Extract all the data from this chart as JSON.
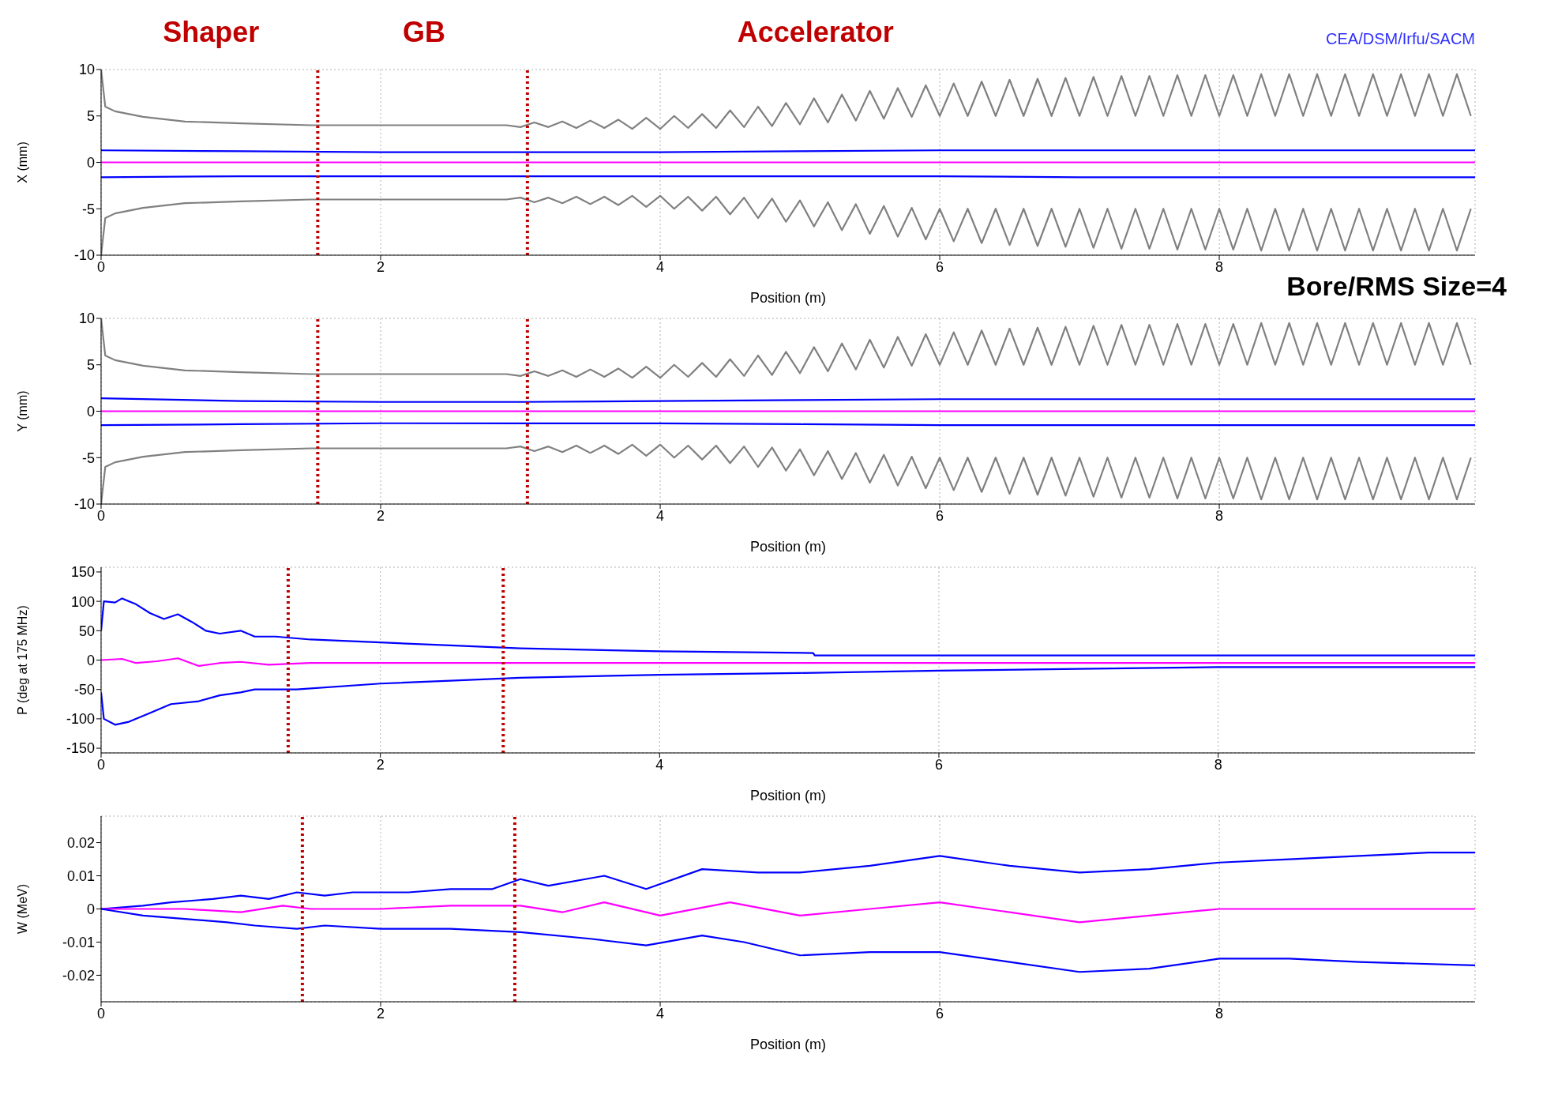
{
  "chart_data": [
    {
      "type": "line",
      "xlabel": "Position (m)",
      "ylabel": "X (mm)",
      "xlim": [
        0,
        9.83
      ],
      "xticks": [
        0,
        2,
        4,
        6,
        8
      ],
      "ylim": [
        -10,
        10
      ],
      "yticks": [
        -10,
        -5,
        0,
        5,
        10
      ],
      "grid": true,
      "annotations": [
        "Shaper",
        "GB",
        "Accelerator",
        "CEA/DSM/Irfu/SACM",
        "Bore/RMS Size=4"
      ],
      "ref_lines": [
        {
          "axis": "x",
          "value": 1.55,
          "color": "#c00000",
          "line_style": "dotted"
        },
        {
          "axis": "x",
          "value": 3.05,
          "color": "#c00000",
          "line_style": "dotted"
        }
      ],
      "series": [
        {
          "color": "#808080",
          "x": [
            0,
            0.03,
            0.1,
            0.3,
            0.6,
            1,
            1.5,
            2,
            2.5,
            2.9,
            3.0,
            3.1,
            3.2,
            3.3,
            3.4,
            3.5,
            3.6,
            3.7,
            3.8,
            3.9,
            4.0,
            4.1,
            4.2,
            4.3,
            4.4,
            4.5,
            4.6,
            4.7,
            4.8,
            4.9,
            5.0,
            5.1,
            5.2,
            5.3,
            5.4,
            5.5,
            5.6,
            5.7,
            5.8,
            5.9,
            6.0,
            6.1,
            6.2,
            6.3,
            6.4,
            6.5,
            6.6,
            6.7,
            6.8,
            6.9,
            7.0,
            7.1,
            7.2,
            7.3,
            7.4,
            7.5,
            7.6,
            7.7,
            7.8,
            7.9,
            8.0,
            8.1,
            8.2,
            8.3,
            8.4,
            8.5,
            8.6,
            8.7,
            8.8,
            8.9,
            9.0,
            9.1,
            9.2,
            9.3,
            9.4,
            9.5,
            9.6,
            9.7,
            9.8
          ],
          "values": [
            10,
            6,
            5.5,
            4.9,
            4.4,
            4.2,
            4.0,
            4.0,
            4.0,
            4.0,
            3.8,
            4.3,
            3.8,
            4.4,
            3.7,
            4.5,
            3.7,
            4.6,
            3.6,
            4.8,
            3.6,
            5.0,
            3.7,
            5.2,
            3.7,
            5.6,
            3.8,
            6.0,
            3.9,
            6.4,
            4.1,
            6.9,
            4.3,
            7.3,
            4.5,
            7.7,
            4.7,
            8.0,
            4.9,
            8.3,
            5.0,
            8.5,
            5.0,
            8.7,
            5.0,
            8.9,
            5.0,
            9.0,
            5.0,
            9.1,
            5.0,
            9.2,
            5.0,
            9.3,
            5.0,
            9.3,
            5.0,
            9.4,
            5.0,
            9.4,
            5.0,
            9.4,
            5.0,
            9.5,
            5.0,
            9.5,
            5.0,
            9.5,
            5.0,
            9.5,
            5.0,
            9.5,
            5.0,
            9.5,
            5.0,
            9.5,
            5.0,
            9.5,
            5.0
          ]
        },
        {
          "color": "#808080",
          "x": [
            0,
            0.03,
            0.1,
            0.3,
            0.6,
            1,
            1.5,
            2,
            2.5,
            2.9,
            3.0,
            3.1,
            3.2,
            3.3,
            3.4,
            3.5,
            3.6,
            3.7,
            3.8,
            3.9,
            4.0,
            4.1,
            4.2,
            4.3,
            4.4,
            4.5,
            4.6,
            4.7,
            4.8,
            4.9,
            5.0,
            5.1,
            5.2,
            5.3,
            5.4,
            5.5,
            5.6,
            5.7,
            5.8,
            5.9,
            6.0,
            6.1,
            6.2,
            6.3,
            6.4,
            6.5,
            6.6,
            6.7,
            6.8,
            6.9,
            7.0,
            7.1,
            7.2,
            7.3,
            7.4,
            7.5,
            7.6,
            7.7,
            7.8,
            7.9,
            8.0,
            8.1,
            8.2,
            8.3,
            8.4,
            8.5,
            8.6,
            8.7,
            8.8,
            8.9,
            9.0,
            9.1,
            9.2,
            9.3,
            9.4,
            9.5,
            9.6,
            9.7,
            9.8
          ],
          "values": [
            -10,
            -6,
            -5.5,
            -4.9,
            -4.4,
            -4.2,
            -4.0,
            -4.0,
            -4.0,
            -4.0,
            -3.8,
            -4.3,
            -3.8,
            -4.4,
            -3.7,
            -4.5,
            -3.7,
            -4.6,
            -3.6,
            -4.8,
            -3.6,
            -5.0,
            -3.7,
            -5.2,
            -3.7,
            -5.6,
            -3.8,
            -6.0,
            -3.9,
            -6.4,
            -4.1,
            -6.9,
            -4.3,
            -7.3,
            -4.5,
            -7.7,
            -4.7,
            -8.0,
            -4.9,
            -8.3,
            -5.0,
            -8.5,
            -5.0,
            -8.7,
            -5.0,
            -8.9,
            -5.0,
            -9.0,
            -5.0,
            -9.1,
            -5.0,
            -9.2,
            -5.0,
            -9.3,
            -5.0,
            -9.3,
            -5.0,
            -9.4,
            -5.0,
            -9.4,
            -5.0,
            -9.4,
            -5.0,
            -9.5,
            -5.0,
            -9.5,
            -5.0,
            -9.5,
            -5.0,
            -9.5,
            -5.0,
            -9.5,
            -5.0,
            -9.5,
            -5.0,
            -9.5,
            -5.0,
            -9.5,
            -5.0
          ]
        },
        {
          "color": "#0000ff",
          "x": [
            0,
            1,
            2,
            3,
            4,
            5,
            6,
            7,
            8,
            9.83
          ],
          "values": [
            1.3,
            1.2,
            1.1,
            1.1,
            1.1,
            1.2,
            1.3,
            1.3,
            1.3,
            1.3
          ]
        },
        {
          "color": "#0000ff",
          "x": [
            0,
            1,
            2,
            3,
            4,
            5,
            6,
            7,
            8,
            9.83
          ],
          "values": [
            -1.6,
            -1.5,
            -1.5,
            -1.5,
            -1.5,
            -1.5,
            -1.5,
            -1.6,
            -1.6,
            -1.6
          ]
        },
        {
          "color": "#ff00ff",
          "x": [
            0,
            9.83
          ],
          "values": [
            0,
            0
          ]
        }
      ]
    },
    {
      "type": "line",
      "xlabel": "Position (m)",
      "ylabel": "Y (mm)",
      "xlim": [
        0,
        9.83
      ],
      "xticks": [
        0,
        2,
        4,
        6,
        8
      ],
      "ylim": [
        -10,
        10
      ],
      "yticks": [
        -10,
        -5,
        0,
        5,
        10
      ],
      "grid": true,
      "ref_lines": [
        {
          "axis": "x",
          "value": 1.55,
          "color": "#c00000",
          "line_style": "dotted"
        },
        {
          "axis": "x",
          "value": 3.05,
          "color": "#c00000",
          "line_style": "dotted"
        }
      ],
      "series": [
        {
          "color": "#808080",
          "x": [
            0,
            0.03,
            0.1,
            0.3,
            0.6,
            1,
            1.5,
            2,
            2.5,
            2.9,
            3.0,
            3.1,
            3.2,
            3.3,
            3.4,
            3.5,
            3.6,
            3.7,
            3.8,
            3.9,
            4.0,
            4.1,
            4.2,
            4.3,
            4.4,
            4.5,
            4.6,
            4.7,
            4.8,
            4.9,
            5.0,
            5.1,
            5.2,
            5.3,
            5.4,
            5.5,
            5.6,
            5.7,
            5.8,
            5.9,
            6.0,
            6.1,
            6.2,
            6.3,
            6.4,
            6.5,
            6.6,
            6.7,
            6.8,
            6.9,
            7.0,
            7.1,
            7.2,
            7.3,
            7.4,
            7.5,
            7.6,
            7.7,
            7.8,
            7.9,
            8.0,
            8.1,
            8.2,
            8.3,
            8.4,
            8.5,
            8.6,
            8.7,
            8.8,
            8.9,
            9.0,
            9.1,
            9.2,
            9.3,
            9.4,
            9.5,
            9.6,
            9.7,
            9.8
          ],
          "values": [
            10,
            6,
            5.5,
            4.9,
            4.4,
            4.2,
            4.0,
            4.0,
            4.0,
            4.0,
            3.8,
            4.3,
            3.8,
            4.4,
            3.7,
            4.5,
            3.7,
            4.6,
            3.6,
            4.8,
            3.6,
            5.0,
            3.7,
            5.2,
            3.7,
            5.6,
            3.8,
            6.0,
            3.9,
            6.4,
            4.1,
            6.9,
            4.3,
            7.3,
            4.5,
            7.7,
            4.7,
            8.0,
            4.9,
            8.3,
            5.0,
            8.5,
            5.0,
            8.7,
            5.0,
            8.9,
            5.0,
            9.0,
            5.0,
            9.1,
            5.0,
            9.2,
            5.0,
            9.3,
            5.0,
            9.3,
            5.0,
            9.4,
            5.0,
            9.4,
            5.0,
            9.4,
            5.0,
            9.5,
            5.0,
            9.5,
            5.0,
            9.5,
            5.0,
            9.5,
            5.0,
            9.5,
            5.0,
            9.5,
            5.0,
            9.5,
            5.0,
            9.5,
            5.0
          ]
        },
        {
          "color": "#808080",
          "x": [
            0,
            0.03,
            0.1,
            0.3,
            0.6,
            1,
            1.5,
            2,
            2.5,
            2.9,
            3.0,
            3.1,
            3.2,
            3.3,
            3.4,
            3.5,
            3.6,
            3.7,
            3.8,
            3.9,
            4.0,
            4.1,
            4.2,
            4.3,
            4.4,
            4.5,
            4.6,
            4.7,
            4.8,
            4.9,
            5.0,
            5.1,
            5.2,
            5.3,
            5.4,
            5.5,
            5.6,
            5.7,
            5.8,
            5.9,
            6.0,
            6.1,
            6.2,
            6.3,
            6.4,
            6.5,
            6.6,
            6.7,
            6.8,
            6.9,
            7.0,
            7.1,
            7.2,
            7.3,
            7.4,
            7.5,
            7.6,
            7.7,
            7.8,
            7.9,
            8.0,
            8.1,
            8.2,
            8.3,
            8.4,
            8.5,
            8.6,
            8.7,
            8.8,
            8.9,
            9.0,
            9.1,
            9.2,
            9.3,
            9.4,
            9.5,
            9.6,
            9.7,
            9.8
          ],
          "values": [
            -10,
            -6,
            -5.5,
            -4.9,
            -4.4,
            -4.2,
            -4.0,
            -4.0,
            -4.0,
            -4.0,
            -3.8,
            -4.3,
            -3.8,
            -4.4,
            -3.7,
            -4.5,
            -3.7,
            -4.6,
            -3.6,
            -4.8,
            -3.6,
            -5.0,
            -3.7,
            -5.2,
            -3.7,
            -5.6,
            -3.8,
            -6.0,
            -3.9,
            -6.4,
            -4.1,
            -6.9,
            -4.3,
            -7.3,
            -4.5,
            -7.7,
            -4.7,
            -8.0,
            -4.9,
            -8.3,
            -5.0,
            -8.5,
            -5.0,
            -8.7,
            -5.0,
            -8.9,
            -5.0,
            -9.0,
            -5.0,
            -9.1,
            -5.0,
            -9.2,
            -5.0,
            -9.3,
            -5.0,
            -9.3,
            -5.0,
            -9.4,
            -5.0,
            -9.4,
            -5.0,
            -9.4,
            -5.0,
            -9.5,
            -5.0,
            -9.5,
            -5.0,
            -9.5,
            -5.0,
            -9.5,
            -5.0,
            -9.5,
            -5.0,
            -9.5,
            -5.0,
            -9.5,
            -5.0,
            -9.5,
            -5.0
          ]
        },
        {
          "color": "#0000ff",
          "x": [
            0,
            1,
            2,
            3,
            4,
            5,
            6,
            7,
            8,
            9.83
          ],
          "values": [
            1.4,
            1.1,
            1.0,
            1.0,
            1.1,
            1.2,
            1.3,
            1.3,
            1.3,
            1.3
          ]
        },
        {
          "color": "#0000ff",
          "x": [
            0,
            1,
            2,
            3,
            4,
            5,
            6,
            7,
            8,
            9.83
          ],
          "values": [
            -1.5,
            -1.4,
            -1.3,
            -1.3,
            -1.3,
            -1.4,
            -1.5,
            -1.5,
            -1.5,
            -1.5
          ]
        },
        {
          "color": "#ff00ff",
          "x": [
            0,
            9.83
          ],
          "values": [
            0,
            0
          ]
        }
      ]
    },
    {
      "type": "line",
      "xlabel": "Position (m)",
      "ylabel": "P (deg at 175 MHz)",
      "xlim": [
        0,
        9.84
      ],
      "xticks": [
        0,
        2,
        4,
        6,
        8
      ],
      "ylim": [
        -158,
        158
      ],
      "yticks": [
        -150,
        -100,
        -50,
        0,
        50,
        100,
        150
      ],
      "grid": true,
      "ref_lines": [
        {
          "axis": "x",
          "value": 1.34,
          "color": "#c00000",
          "line_style": "dotted"
        },
        {
          "axis": "x",
          "value": 2.88,
          "color": "#c00000",
          "line_style": "dotted"
        }
      ],
      "series": [
        {
          "color": "#0000ff",
          "x": [
            0,
            0.02,
            0.1,
            0.15,
            0.25,
            0.35,
            0.45,
            0.55,
            0.65,
            0.75,
            0.85,
            1.0,
            1.1,
            1.25,
            1.5,
            2.0,
            2.5,
            3.0,
            4.0,
            5.1,
            5.11,
            9.84
          ],
          "values": [
            50,
            100,
            98,
            105,
            95,
            80,
            70,
            78,
            65,
            50,
            45,
            50,
            40,
            40,
            35,
            30,
            25,
            20,
            15,
            12,
            8,
            8
          ]
        },
        {
          "color": "#ff00ff",
          "x": [
            0,
            0.15,
            0.25,
            0.4,
            0.55,
            0.7,
            0.85,
            1.0,
            1.2,
            1.5,
            2,
            3,
            4,
            9.84
          ],
          "values": [
            0,
            2,
            -5,
            -2,
            3,
            -10,
            -5,
            -3,
            -8,
            -5,
            -5,
            -5,
            -5,
            -5
          ]
        },
        {
          "color": "#0000ff",
          "x": [
            0,
            0.02,
            0.1,
            0.2,
            0.35,
            0.5,
            0.7,
            0.85,
            1.0,
            1.1,
            1.4,
            2,
            2.5,
            3,
            4,
            5,
            6,
            7,
            8,
            9.84
          ],
          "values": [
            -55,
            -100,
            -110,
            -105,
            -90,
            -75,
            -70,
            -60,
            -55,
            -50,
            -50,
            -40,
            -35,
            -30,
            -25,
            -22,
            -18,
            -15,
            -12,
            -12
          ]
        }
      ]
    },
    {
      "type": "line",
      "xlabel": "Position (m)",
      "ylabel": "W (MeV)",
      "xlim": [
        0,
        9.83
      ],
      "xticks": [
        0,
        2,
        4,
        6,
        8
      ],
      "ylim": [
        -0.028,
        0.028
      ],
      "yticks": [
        -0.02,
        -0.01,
        0,
        0.01,
        0.02
      ],
      "grid": true,
      "ref_lines": [
        {
          "axis": "x",
          "value": 1.44,
          "color": "#c00000",
          "line_style": "dotted"
        },
        {
          "axis": "x",
          "value": 2.96,
          "color": "#c00000",
          "line_style": "dotted"
        }
      ],
      "series": [
        {
          "color": "#0000ff",
          "x": [
            0,
            0.3,
            0.5,
            0.8,
            1.0,
            1.2,
            1.4,
            1.6,
            1.8,
            2.2,
            2.5,
            2.8,
            3.0,
            3.2,
            3.6,
            3.9,
            4.3,
            4.7,
            5.0,
            5.5,
            6.0,
            6.5,
            7.0,
            7.5,
            8.0,
            8.5,
            9.0,
            9.5,
            9.83
          ],
          "values": [
            0,
            0.001,
            0.002,
            0.003,
            0.004,
            0.003,
            0.005,
            0.004,
            0.005,
            0.005,
            0.006,
            0.006,
            0.009,
            0.007,
            0.01,
            0.006,
            0.012,
            0.011,
            0.011,
            0.013,
            0.016,
            0.013,
            0.011,
            0.012,
            0.014,
            0.015,
            0.016,
            0.017,
            0.017
          ]
        },
        {
          "color": "#ff00ff",
          "x": [
            0,
            0.6,
            1.0,
            1.3,
            1.5,
            2,
            2.5,
            3.0,
            3.3,
            3.6,
            4,
            4.5,
            5,
            5.5,
            6,
            7,
            8,
            9.83
          ],
          "values": [
            0,
            0,
            -0.001,
            0.001,
            0,
            0,
            0.001,
            0.001,
            -0.001,
            0.002,
            -0.002,
            0.002,
            -0.002,
            0,
            0.002,
            -0.004,
            0,
            0
          ]
        },
        {
          "color": "#0000ff",
          "x": [
            0,
            0.3,
            0.6,
            0.9,
            1.1,
            1.4,
            1.6,
            2.0,
            2.5,
            3.0,
            3.5,
            3.9,
            4.3,
            4.6,
            5.0,
            5.5,
            6.0,
            6.5,
            7.0,
            7.5,
            8.0,
            8.5,
            9.0,
            9.83
          ],
          "values": [
            0,
            -0.002,
            -0.003,
            -0.004,
            -0.005,
            -0.006,
            -0.005,
            -0.006,
            -0.006,
            -0.007,
            -0.009,
            -0.011,
            -0.008,
            -0.01,
            -0.014,
            -0.013,
            -0.013,
            -0.016,
            -0.019,
            -0.018,
            -0.015,
            -0.015,
            -0.016,
            -0.017
          ]
        }
      ]
    }
  ]
}
